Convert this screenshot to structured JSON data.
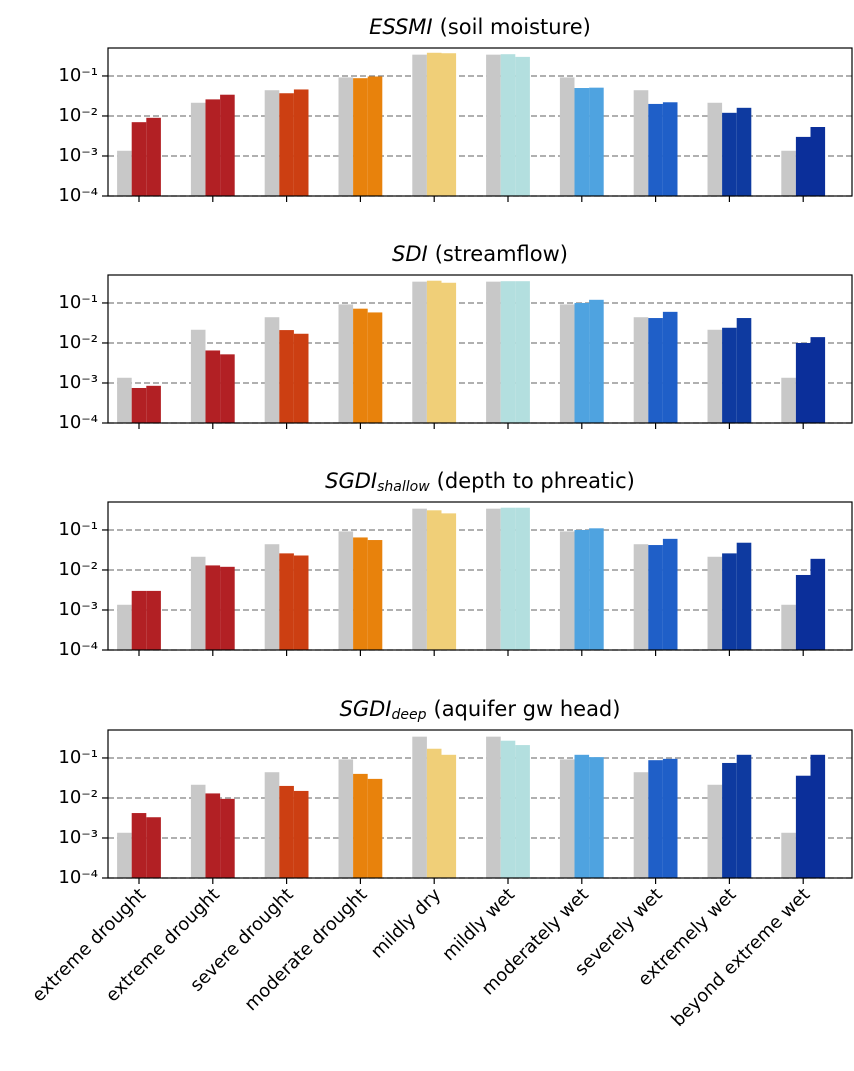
{
  "chart_data": [
    {
      "type": "bar",
      "title_italic": "ESSMI",
      "title": "(soil moisture)",
      "log": true,
      "grid": true,
      "ylim": [
        0.0001,
        0.5
      ],
      "yticks": [
        {
          "value": 0.0001,
          "label": "10⁻⁴"
        },
        {
          "value": 0.001,
          "label": "10⁻³"
        },
        {
          "value": 0.01,
          "label": "10⁻²"
        },
        {
          "value": 0.1,
          "label": "10⁻¹"
        }
      ],
      "series": [
        {
          "color": "#c8c8c8",
          "values": [
            0.00135,
            0.0214,
            0.044,
            0.092,
            0.341,
            0.341,
            0.092,
            0.044,
            0.0214,
            0.00135
          ]
        },
        {
          "colors": [
            "#b22024",
            "#b22024",
            "#cc3f12",
            "#e8820c",
            "#f0cf78",
            "#b3dfdf",
            "#4fa3e0",
            "#1f5fc8",
            "#0e3aa0",
            "#0b2f9a"
          ],
          "values": [
            0.007,
            0.026,
            0.037,
            0.088,
            0.38,
            0.35,
            0.05,
            0.02,
            0.012,
            0.003
          ]
        },
        {
          "colors": [
            "#b22024",
            "#b22024",
            "#cc3f12",
            "#e8820c",
            "#f0cf78",
            "#b3dfdf",
            "#4fa3e0",
            "#1f5fc8",
            "#0e3aa0",
            "#0b2f9a"
          ],
          "values": [
            0.009,
            0.034,
            0.046,
            0.097,
            0.37,
            0.3,
            0.051,
            0.022,
            0.016,
            0.0053
          ]
        }
      ]
    },
    {
      "type": "bar",
      "title_italic": "SDI",
      "title": "(streamflow)",
      "log": true,
      "grid": true,
      "ylim": [
        0.0001,
        0.5
      ],
      "yticks": [
        {
          "value": 0.0001,
          "label": "10⁻⁴"
        },
        {
          "value": 0.001,
          "label": "10⁻³"
        },
        {
          "value": 0.01,
          "label": "10⁻²"
        },
        {
          "value": 0.1,
          "label": "10⁻¹"
        }
      ],
      "series": [
        {
          "color": "#c8c8c8",
          "values": [
            0.00135,
            0.0214,
            0.044,
            0.092,
            0.341,
            0.341,
            0.092,
            0.044,
            0.0214,
            0.00135
          ]
        },
        {
          "colors": [
            "#b22024",
            "#b22024",
            "#cc3f12",
            "#e8820c",
            "#f0cf78",
            "#b3dfdf",
            "#4fa3e0",
            "#1f5fc8",
            "#0e3aa0",
            "#0b2f9a"
          ],
          "values": [
            0.00075,
            0.0065,
            0.021,
            0.072,
            0.36,
            0.35,
            0.1,
            0.042,
            0.024,
            0.01
          ]
        },
        {
          "colors": [
            "#b22024",
            "#b22024",
            "#cc3f12",
            "#e8820c",
            "#f0cf78",
            "#b3dfdf",
            "#4fa3e0",
            "#1f5fc8",
            "#0e3aa0",
            "#0b2f9a"
          ],
          "values": [
            0.00085,
            0.0052,
            0.017,
            0.058,
            0.32,
            0.35,
            0.12,
            0.06,
            0.042,
            0.014
          ]
        }
      ]
    },
    {
      "type": "bar",
      "title_italic": "SGDI",
      "title_subscript": "shallow",
      "title": "(depth to phreatic)",
      "log": true,
      "grid": true,
      "ylim": [
        0.0001,
        0.5
      ],
      "yticks": [
        {
          "value": 0.0001,
          "label": "10⁻⁴"
        },
        {
          "value": 0.001,
          "label": "10⁻³"
        },
        {
          "value": 0.01,
          "label": "10⁻²"
        },
        {
          "value": 0.1,
          "label": "10⁻¹"
        }
      ],
      "series": [
        {
          "color": "#c8c8c8",
          "values": [
            0.00135,
            0.0214,
            0.044,
            0.092,
            0.341,
            0.341,
            0.092,
            0.044,
            0.0214,
            0.00135
          ]
        },
        {
          "colors": [
            "#b22024",
            "#b22024",
            "#cc3f12",
            "#e8820c",
            "#f0cf78",
            "#b3dfdf",
            "#4fa3e0",
            "#1f5fc8",
            "#0e3aa0",
            "#0b2f9a"
          ],
          "values": [
            0.003,
            0.013,
            0.026,
            0.065,
            0.31,
            0.36,
            0.1,
            0.042,
            0.026,
            0.0075
          ]
        },
        {
          "colors": [
            "#b22024",
            "#b22024",
            "#cc3f12",
            "#e8820c",
            "#f0cf78",
            "#b3dfdf",
            "#4fa3e0",
            "#1f5fc8",
            "#0e3aa0",
            "#0b2f9a"
          ],
          "values": [
            0.003,
            0.012,
            0.023,
            0.056,
            0.26,
            0.36,
            0.11,
            0.06,
            0.048,
            0.019
          ]
        }
      ]
    },
    {
      "type": "bar",
      "title_italic": "SGDI",
      "title_subscript": "deep",
      "title": "(aquifer gw head)",
      "log": true,
      "grid": true,
      "ylim": [
        0.0001,
        0.5
      ],
      "yticks": [
        {
          "value": 0.0001,
          "label": "10⁻⁴"
        },
        {
          "value": 0.001,
          "label": "10⁻³"
        },
        {
          "value": 0.01,
          "label": "10⁻²"
        },
        {
          "value": 0.1,
          "label": "10⁻¹"
        }
      ],
      "categories": [
        "extreme drought",
        "extreme drought",
        "severe drought",
        "moderate drought",
        "mildly dry",
        "mildly wet",
        "moderately wet",
        "severely wet",
        "extremely wet",
        "beyond extreme wet"
      ],
      "series": [
        {
          "color": "#c8c8c8",
          "values": [
            0.00135,
            0.0214,
            0.044,
            0.092,
            0.341,
            0.341,
            0.092,
            0.044,
            0.0214,
            0.00135
          ]
        },
        {
          "colors": [
            "#b22024",
            "#b22024",
            "#cc3f12",
            "#e8820c",
            "#f0cf78",
            "#b3dfdf",
            "#4fa3e0",
            "#1f5fc8",
            "#0e3aa0",
            "#0b2f9a"
          ],
          "values": [
            0.0042,
            0.013,
            0.02,
            0.04,
            0.17,
            0.27,
            0.12,
            0.088,
            0.075,
            0.036
          ]
        },
        {
          "colors": [
            "#b22024",
            "#b22024",
            "#cc3f12",
            "#e8820c",
            "#f0cf78",
            "#b3dfdf",
            "#4fa3e0",
            "#1f5fc8",
            "#0e3aa0",
            "#0b2f9a"
          ],
          "values": [
            0.0033,
            0.0095,
            0.015,
            0.03,
            0.12,
            0.21,
            0.105,
            0.095,
            0.12,
            0.12
          ]
        }
      ]
    }
  ]
}
